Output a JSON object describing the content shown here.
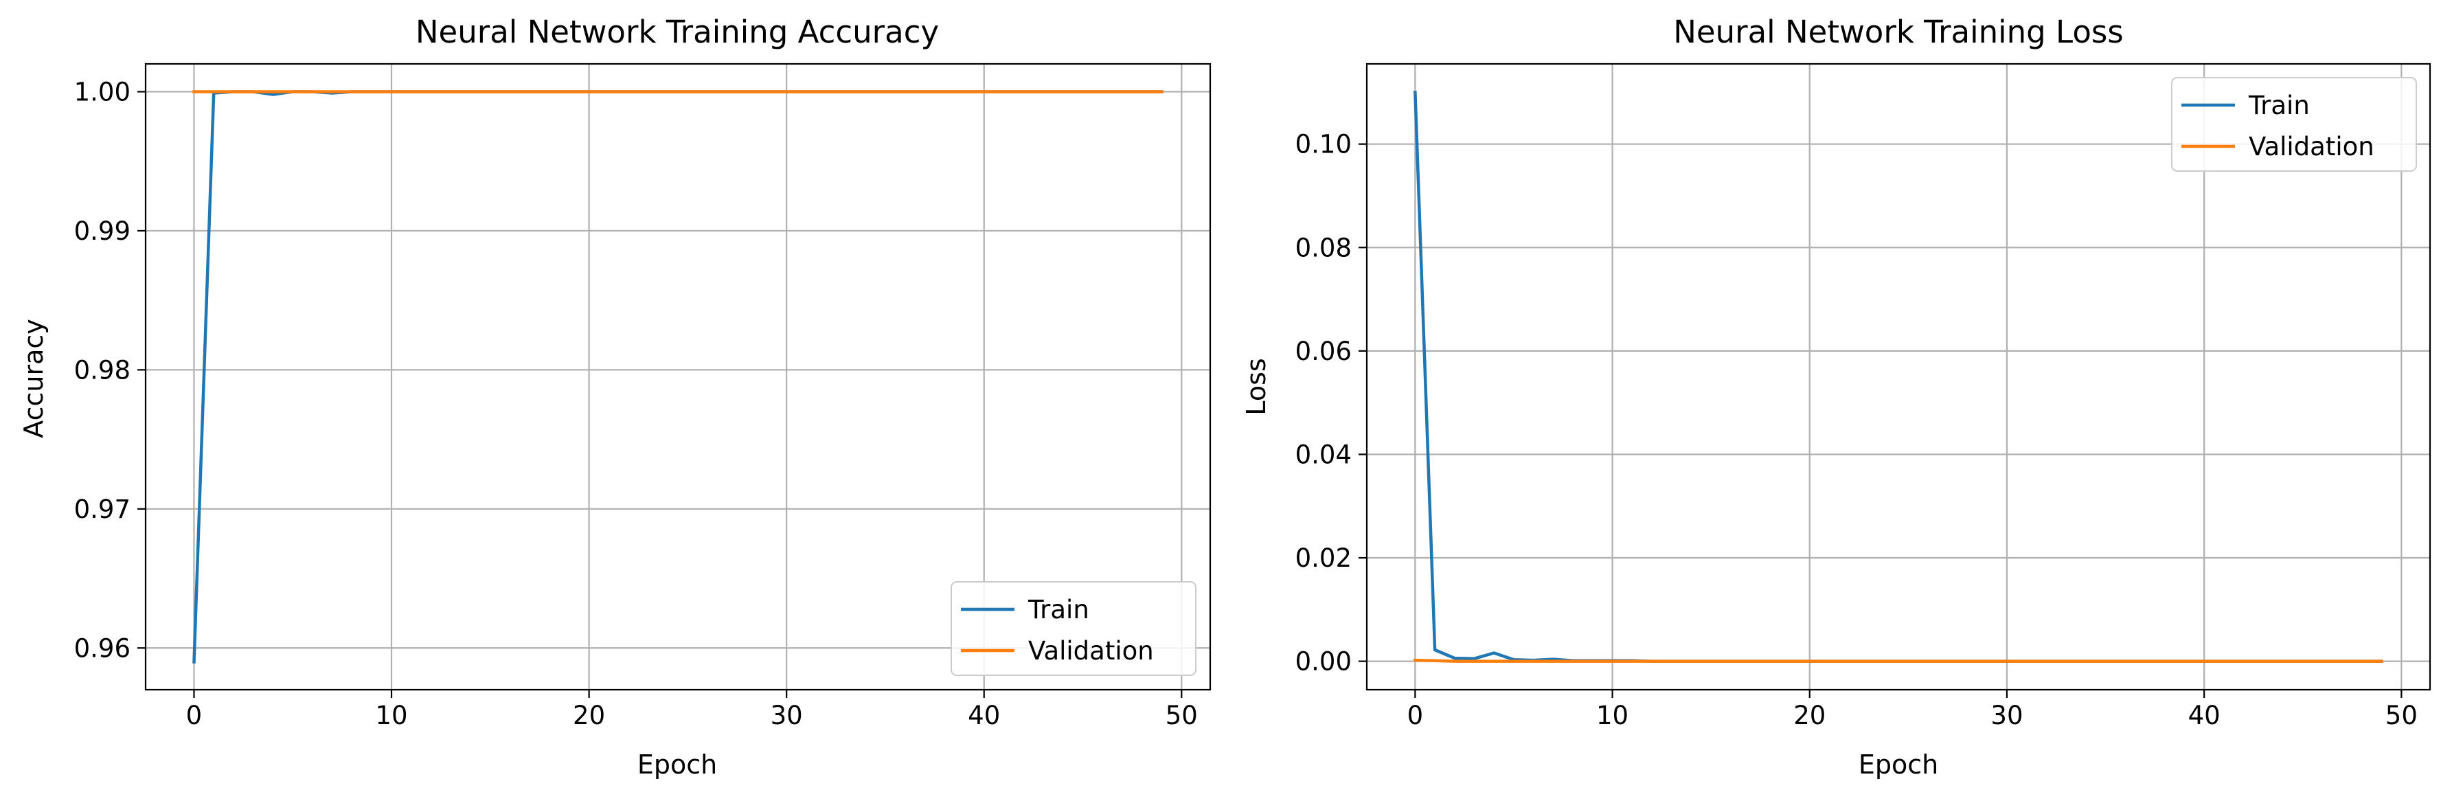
{
  "chart_data": [
    {
      "type": "line",
      "title": "Neural Network Training Accuracy",
      "xlabel": "Epoch",
      "ylabel": "Accuracy",
      "xlim": [
        -2.45,
        51.45
      ],
      "ylim": [
        0.957,
        1.002
      ],
      "xticks": [
        0,
        10,
        20,
        30,
        40,
        50
      ],
      "yticks": [
        0.96,
        0.97,
        0.98,
        0.99,
        1.0
      ],
      "ytick_labels": [
        "0.96",
        "0.97",
        "0.98",
        "0.99",
        "1.00"
      ],
      "grid": true,
      "legend_position": "lower-right",
      "series": [
        {
          "name": "Train",
          "color": "#1f77b4",
          "x": [
            0,
            1,
            2,
            3,
            4,
            5,
            6,
            7,
            8,
            9,
            10,
            11,
            12,
            13,
            14,
            15,
            16,
            17,
            18,
            19,
            20,
            21,
            22,
            23,
            24,
            25,
            26,
            27,
            28,
            29,
            30,
            31,
            32,
            33,
            34,
            35,
            36,
            37,
            38,
            39,
            40,
            41,
            42,
            43,
            44,
            45,
            46,
            47,
            48,
            49
          ],
          "y": [
            0.959,
            0.9999,
            1.0,
            1.0,
            0.9998,
            1.0,
            1.0,
            0.9999,
            1.0,
            1.0,
            1.0,
            1.0,
            1.0,
            1.0,
            1.0,
            1.0,
            1.0,
            1.0,
            1.0,
            1.0,
            1.0,
            1.0,
            1.0,
            1.0,
            1.0,
            1.0,
            1.0,
            1.0,
            1.0,
            1.0,
            1.0,
            1.0,
            1.0,
            1.0,
            1.0,
            1.0,
            1.0,
            1.0,
            1.0,
            1.0,
            1.0,
            1.0,
            1.0,
            1.0,
            1.0,
            1.0,
            1.0,
            1.0,
            1.0,
            1.0
          ]
        },
        {
          "name": "Validation",
          "color": "#ff7f0e",
          "x": [
            0,
            1,
            2,
            3,
            4,
            5,
            6,
            7,
            8,
            9,
            10,
            11,
            12,
            13,
            14,
            15,
            16,
            17,
            18,
            19,
            20,
            21,
            22,
            23,
            24,
            25,
            26,
            27,
            28,
            29,
            30,
            31,
            32,
            33,
            34,
            35,
            36,
            37,
            38,
            39,
            40,
            41,
            42,
            43,
            44,
            45,
            46,
            47,
            48,
            49
          ],
          "y": [
            1.0,
            1.0,
            1.0,
            1.0,
            1.0,
            1.0,
            1.0,
            1.0,
            1.0,
            1.0,
            1.0,
            1.0,
            1.0,
            1.0,
            1.0,
            1.0,
            1.0,
            1.0,
            1.0,
            1.0,
            1.0,
            1.0,
            1.0,
            1.0,
            1.0,
            1.0,
            1.0,
            1.0,
            1.0,
            1.0,
            1.0,
            1.0,
            1.0,
            1.0,
            1.0,
            1.0,
            1.0,
            1.0,
            1.0,
            1.0,
            1.0,
            1.0,
            1.0,
            1.0,
            1.0,
            1.0,
            1.0,
            1.0,
            1.0,
            1.0
          ]
        }
      ]
    },
    {
      "type": "line",
      "title": "Neural Network Training Loss",
      "xlabel": "Epoch",
      "ylabel": "Loss",
      "xlim": [
        -2.45,
        51.45
      ],
      "ylim": [
        -0.0055,
        0.1155
      ],
      "xticks": [
        0,
        10,
        20,
        30,
        40,
        50
      ],
      "yticks": [
        0.0,
        0.02,
        0.04,
        0.06,
        0.08,
        0.1
      ],
      "ytick_labels": [
        "0.00",
        "0.02",
        "0.04",
        "0.06",
        "0.08",
        "0.10"
      ],
      "grid": true,
      "legend_position": "top-right",
      "series": [
        {
          "name": "Train",
          "color": "#1f77b4",
          "x": [
            0,
            1,
            2,
            3,
            4,
            5,
            6,
            7,
            8,
            9,
            10,
            11,
            12,
            13,
            14,
            15,
            16,
            17,
            18,
            19,
            20,
            21,
            22,
            23,
            24,
            25,
            26,
            27,
            28,
            29,
            30,
            31,
            32,
            33,
            34,
            35,
            36,
            37,
            38,
            39,
            40,
            41,
            42,
            43,
            44,
            45,
            46,
            47,
            48,
            49
          ],
          "y": [
            0.11,
            0.0022,
            0.0006,
            0.0005,
            0.0016,
            0.0003,
            0.0002,
            0.0004,
            0.0001,
            0.0001,
            0.0001,
            0.0001,
            0.0,
            0.0,
            0.0,
            0.0,
            0.0,
            0.0,
            0.0,
            0.0,
            0.0,
            0.0,
            0.0,
            0.0,
            0.0,
            0.0,
            0.0,
            0.0,
            0.0,
            0.0,
            0.0,
            0.0,
            0.0,
            0.0,
            0.0,
            0.0,
            0.0,
            0.0,
            0.0,
            0.0,
            0.0,
            0.0,
            0.0,
            0.0,
            0.0,
            0.0,
            0.0,
            0.0,
            0.0,
            0.0
          ]
        },
        {
          "name": "Validation",
          "color": "#ff7f0e",
          "x": [
            0,
            1,
            2,
            3,
            4,
            5,
            6,
            7,
            8,
            9,
            10,
            11,
            12,
            13,
            14,
            15,
            16,
            17,
            18,
            19,
            20,
            21,
            22,
            23,
            24,
            25,
            26,
            27,
            28,
            29,
            30,
            31,
            32,
            33,
            34,
            35,
            36,
            37,
            38,
            39,
            40,
            41,
            42,
            43,
            44,
            45,
            46,
            47,
            48,
            49
          ],
          "y": [
            0.0002,
            0.0001,
            0.0,
            0.0,
            0.0,
            0.0,
            0.0,
            0.0,
            0.0,
            0.0,
            0.0,
            0.0,
            0.0,
            0.0,
            0.0,
            0.0,
            0.0,
            0.0,
            0.0,
            0.0,
            0.0,
            0.0,
            0.0,
            0.0,
            0.0,
            0.0,
            0.0,
            0.0,
            0.0,
            0.0,
            0.0,
            0.0,
            0.0,
            0.0,
            0.0,
            0.0,
            0.0,
            0.0,
            0.0,
            0.0,
            0.0,
            0.0,
            0.0,
            0.0,
            0.0,
            0.0,
            0.0,
            0.0,
            0.0,
            0.0
          ]
        }
      ]
    }
  ]
}
